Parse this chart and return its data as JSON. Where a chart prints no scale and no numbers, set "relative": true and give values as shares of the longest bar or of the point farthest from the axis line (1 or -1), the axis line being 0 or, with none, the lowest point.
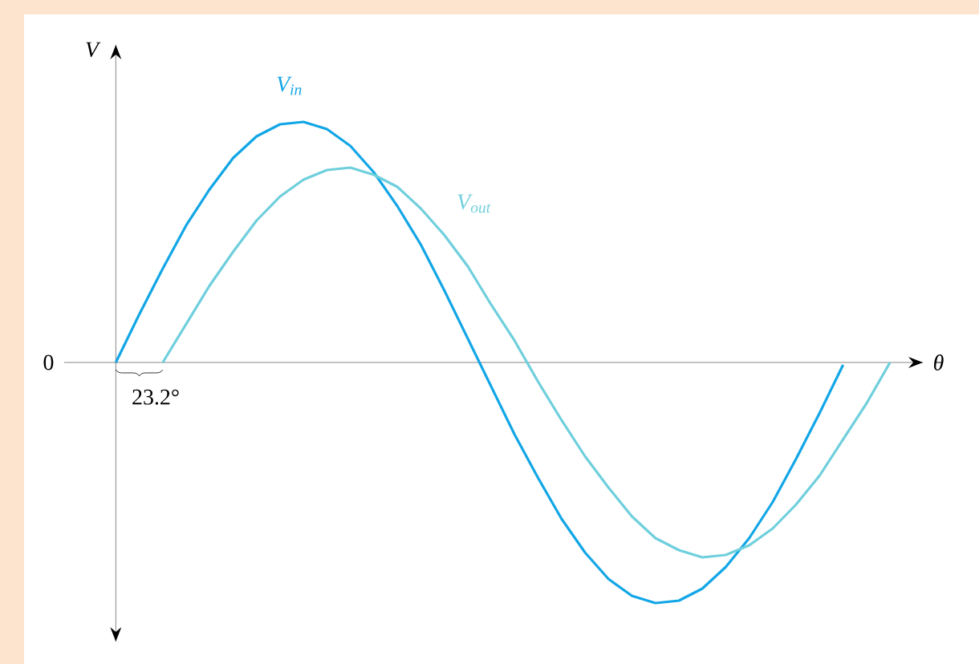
{
  "chart_data": {
    "type": "line",
    "relative": true,
    "xlabel": "θ",
    "ylabel": "V",
    "marker": "none",
    "line_style": "solid",
    "categories": [
      null,
      null,
      null,
      null,
      null,
      null,
      null,
      null,
      null,
      null,
      null,
      null,
      null,
      null,
      null,
      null,
      null,
      null,
      null,
      null,
      null,
      null,
      null,
      null,
      null,
      null,
      null,
      null,
      null,
      null,
      null,
      null,
      null,
      null
    ],
    "series": [
      {
        "name": "V$_{in}$",
        "color": "#12a6e6",
        "values": [
          0,
          0.2,
          0.39,
          0.57,
          0.72,
          0.85,
          0.94,
          0.99,
          1.0,
          0.97,
          0.9,
          0.79,
          0.65,
          0.49,
          0.3,
          0.1,
          -0.1,
          -0.3,
          -0.48,
          -0.65,
          -0.79,
          -0.9,
          -0.97,
          -1.0,
          -0.99,
          -0.94,
          -0.85,
          -0.73,
          -0.58,
          -0.4,
          -0.21,
          -0.01,
          null,
          null
        ]
      },
      {
        "name": "V$_{out}$",
        "color": "#6fcfdc",
        "values": [
          null,
          null,
          0,
          0.16,
          0.32,
          0.46,
          0.59,
          0.69,
          0.76,
          0.8,
          0.81,
          0.78,
          0.73,
          0.64,
          0.53,
          0.4,
          0.24,
          0.09,
          -0.08,
          -0.24,
          -0.39,
          -0.52,
          -0.64,
          -0.73,
          -0.78,
          -0.81,
          -0.8,
          -0.76,
          -0.69,
          -0.59,
          -0.47,
          -0.32,
          -0.17,
          0
        ]
      }
    ],
    "annotations": [
      "0",
      "23.2°"
    ]
  }
}
